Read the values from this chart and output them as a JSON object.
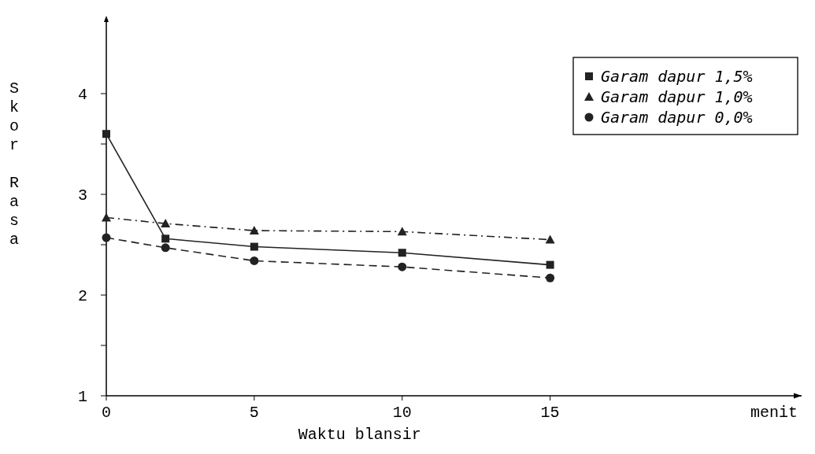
{
  "chart_data": {
    "type": "line",
    "xlabel": "Waktu blansir",
    "ylabel": "Skor Rasa",
    "x": [
      0,
      2,
      5,
      10,
      15
    ],
    "series": [
      {
        "name": "Garam dapur 1,5%",
        "color": "#222222",
        "marker": "square",
        "line_style": "solid",
        "values": [
          3.6,
          2.56,
          2.48,
          2.42,
          2.3
        ]
      },
      {
        "name": "Garam dapur 1,0%",
        "color": "#222222",
        "marker": "triangle",
        "line_style": "dashdot",
        "values": [
          2.77,
          2.71,
          2.64,
          2.63,
          2.55
        ]
      },
      {
        "name": "Garam dapur 0,0%",
        "color": "#222222",
        "marker": "circle",
        "line_style": "dashed",
        "values": [
          2.57,
          2.47,
          2.34,
          2.28,
          2.17
        ]
      }
    ],
    "xlim": [
      0,
      23.5
    ],
    "xticks": [
      0,
      5,
      10,
      15
    ],
    "ylim": [
      1,
      4.75
    ],
    "yticks": [
      1,
      {
        "value": 1.5,
        "label": null
      },
      2,
      {
        "value": 2.5,
        "label": null
      },
      3,
      {
        "value": 3.5,
        "label": null
      },
      4
    ],
    "annotations": [
      "menit"
    ],
    "grid": false,
    "legend": "top right"
  }
}
